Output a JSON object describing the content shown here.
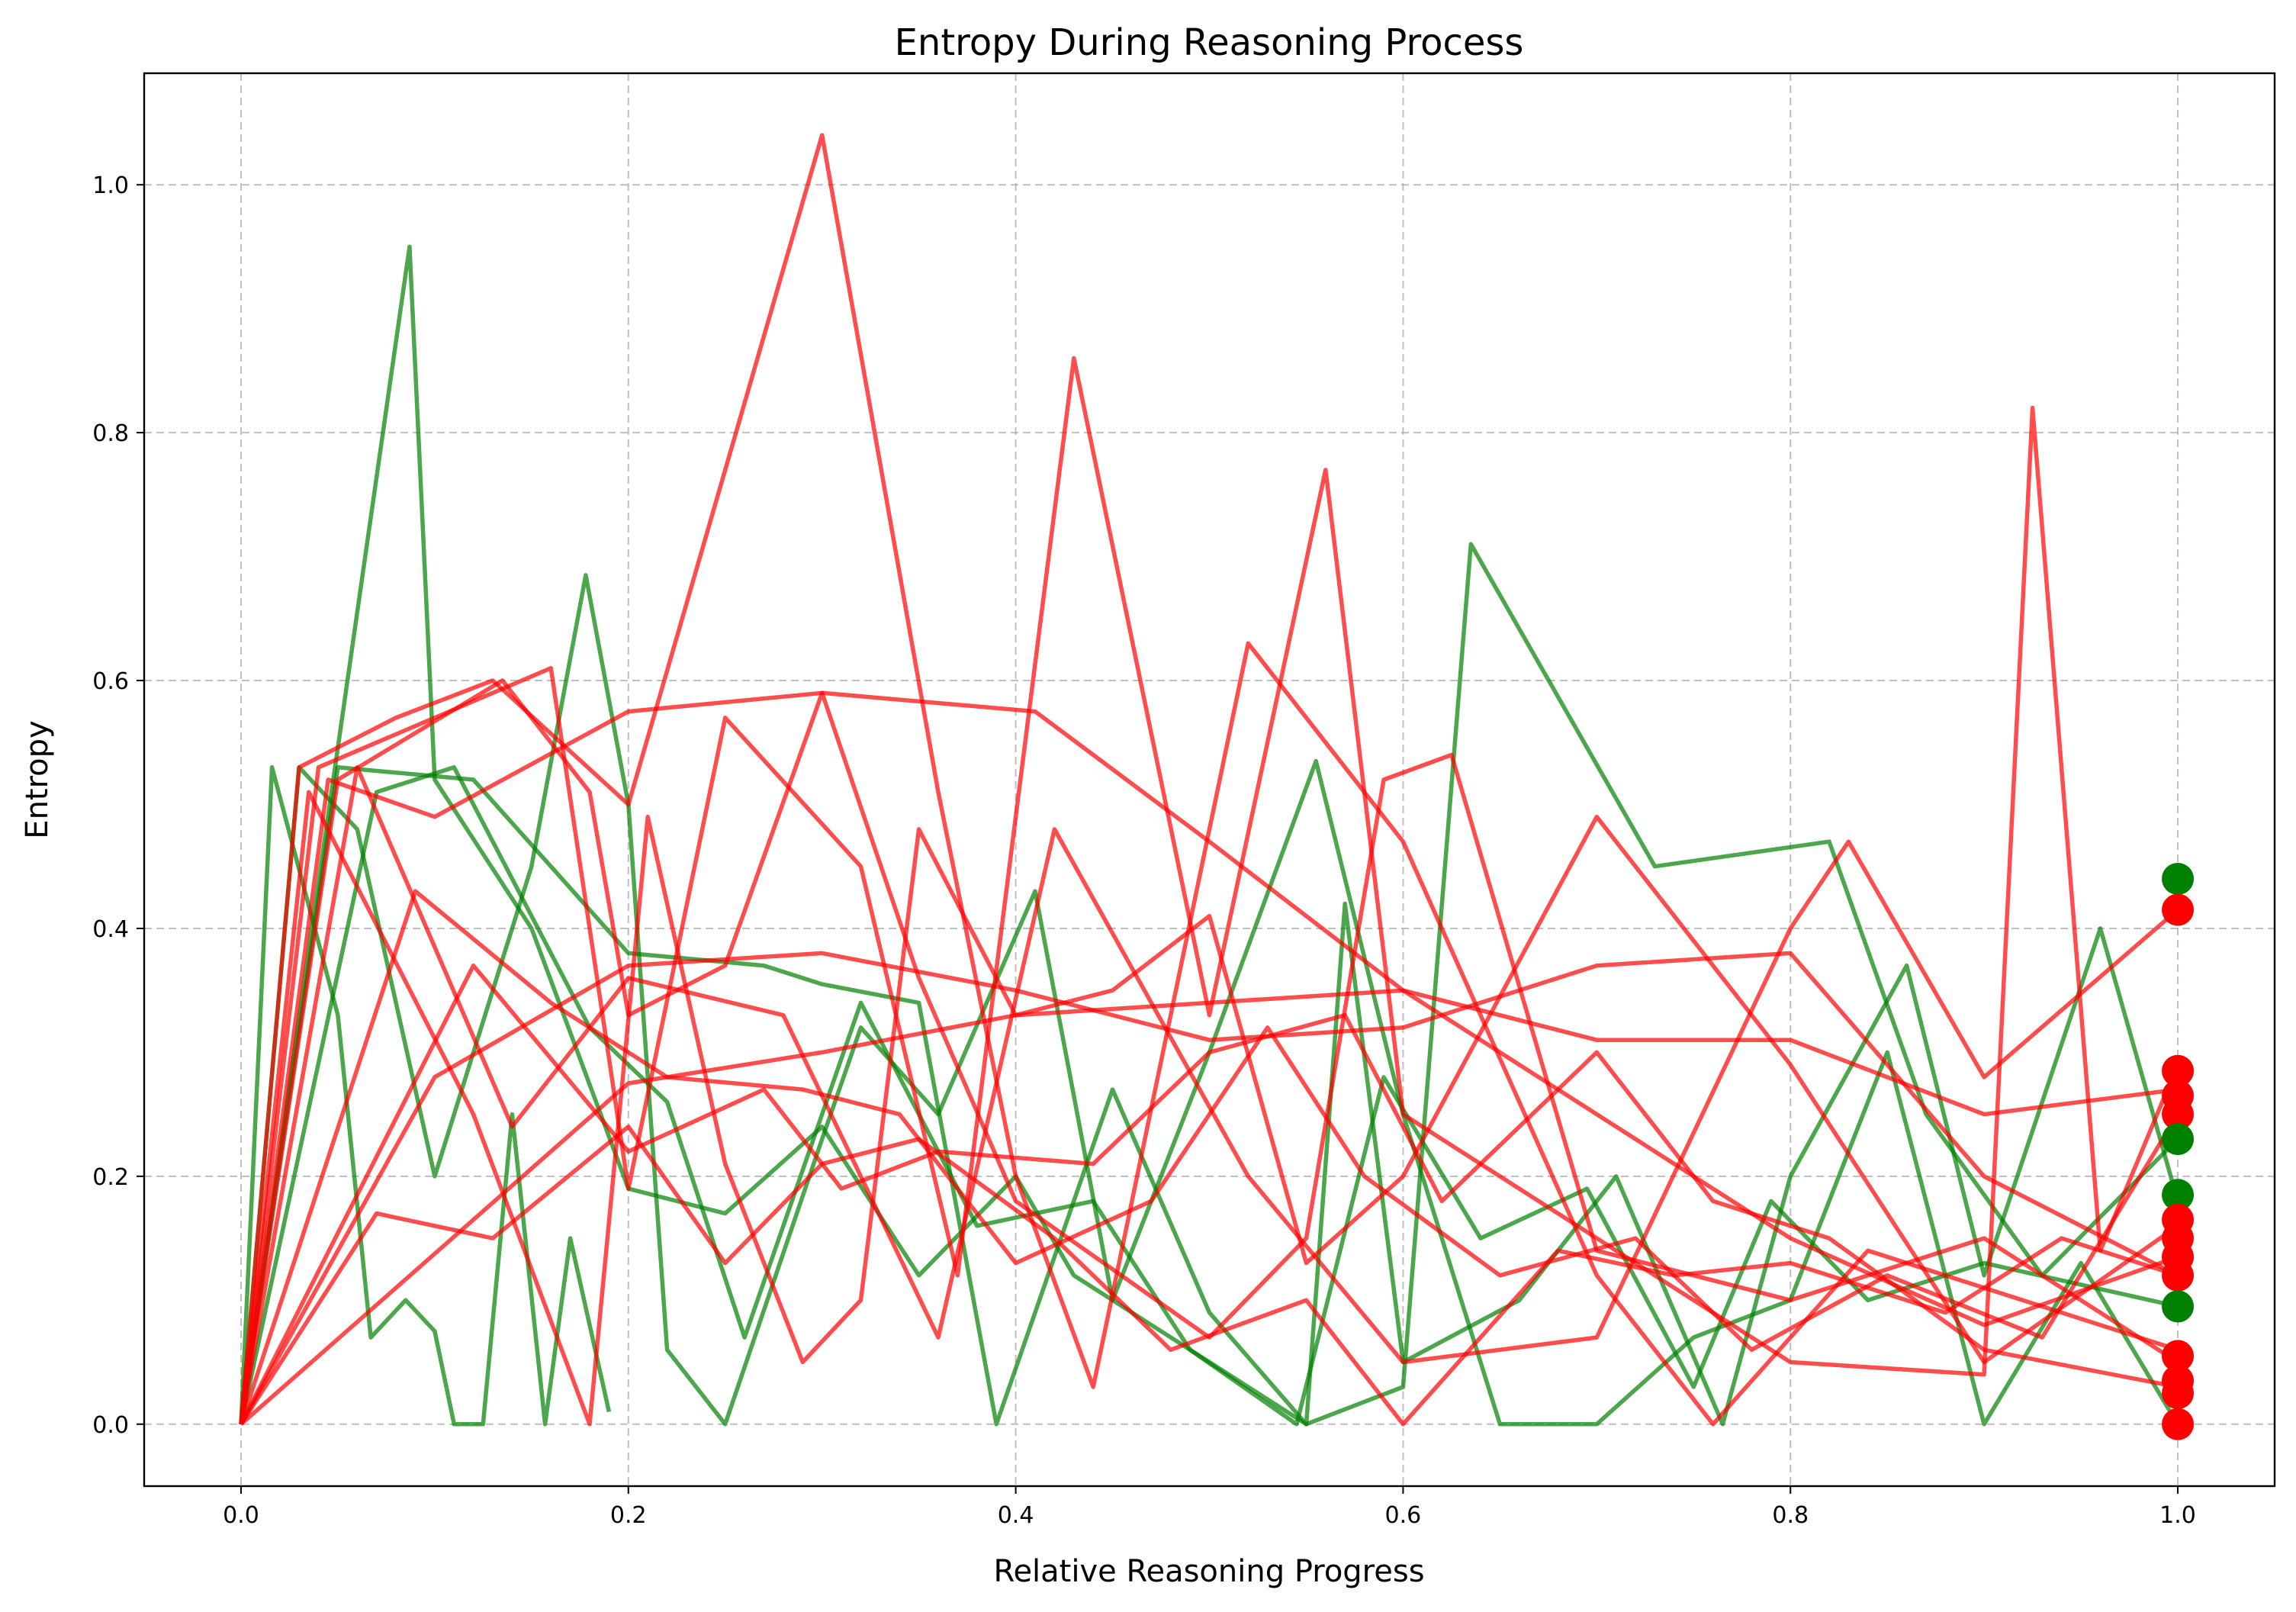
{
  "chart_data": {
    "type": "line",
    "title": "Entropy During Reasoning Process",
    "xlabel": "Relative Reasoning Progress",
    "ylabel": "Entropy",
    "xlim": [
      -0.05,
      1.05
    ],
    "ylim": [
      -0.05,
      1.09
    ],
    "x_ticks": [
      0.0,
      0.2,
      0.4,
      0.6,
      0.8,
      1.0
    ],
    "x_tick_labels": [
      "0.0",
      "0.2",
      "0.4",
      "0.6",
      "0.8",
      "1.0"
    ],
    "y_ticks": [
      0.0,
      0.2,
      0.4,
      0.6,
      0.8,
      1.0
    ],
    "y_tick_labels": [
      "0.0",
      "0.2",
      "0.4",
      "0.6",
      "0.8",
      "1.0"
    ],
    "grid": true,
    "colors": {
      "correct": "#008000",
      "incorrect": "#ff0000"
    },
    "series": [
      {
        "color": "#008000",
        "x": [
          0,
          0.016,
          0.05,
          0.067,
          0.085,
          0.1,
          0.11,
          0.125,
          0.14,
          0.157,
          0.17,
          0.19
        ],
        "y": [
          0,
          0.53,
          0.33,
          0.07,
          0.1,
          0.075,
          0.0,
          0.0,
          0.25,
          0.0,
          0.15,
          0.01
        ]
      },
      {
        "color": "#008000",
        "x": [
          0,
          0.087,
          0.1,
          0.15,
          0.2,
          0.25,
          0.3,
          0.35,
          0.4,
          0.43,
          0.5,
          0.55,
          0.6,
          0.635,
          0.73,
          0.82,
          0.87,
          0.93,
          1.0
        ],
        "y": [
          0,
          0.95,
          0.52,
          0.4,
          0.19,
          0.17,
          0.24,
          0.12,
          0.2,
          0.12,
          0.05,
          0.0,
          0.03,
          0.71,
          0.45,
          0.47,
          0.25,
          0.12,
          0.23
        ]
      },
      {
        "color": "#008000",
        "x": [
          0,
          0.03,
          0.06,
          0.1,
          0.15,
          0.178,
          0.2,
          0.22,
          0.25,
          0.3,
          0.32,
          0.36,
          0.41,
          0.45,
          0.5,
          0.555,
          0.6,
          0.65,
          0.7,
          0.75,
          0.8,
          0.85,
          0.9,
          0.95,
          1.0
        ],
        "y": [
          0,
          0.53,
          0.48,
          0.2,
          0.45,
          0.685,
          0.5,
          0.06,
          0.0,
          0.23,
          0.32,
          0.25,
          0.43,
          0.1,
          0.3,
          0.535,
          0.25,
          0.0,
          0.0,
          0.07,
          0.1,
          0.3,
          0.0,
          0.13,
          0.0
        ]
      },
      {
        "color": "#008000",
        "x": [
          0,
          0.05,
          0.12,
          0.2,
          0.27,
          0.3,
          0.35,
          0.39,
          0.45,
          0.5,
          0.55,
          0.57,
          0.6,
          0.66,
          0.71,
          0.765,
          0.8,
          0.86,
          0.9,
          0.96,
          1.0
        ],
        "y": [
          0,
          0.53,
          0.52,
          0.38,
          0.37,
          0.355,
          0.34,
          0.0,
          0.27,
          0.09,
          0.0,
          0.42,
          0.05,
          0.1,
          0.2,
          0.0,
          0.2,
          0.37,
          0.12,
          0.4,
          0.18
        ]
      },
      {
        "color": "#008000",
        "x": [
          0,
          0.07,
          0.11,
          0.18,
          0.22,
          0.26,
          0.32,
          0.38,
          0.44,
          0.49,
          0.545,
          0.59,
          0.64,
          0.695,
          0.75,
          0.79,
          0.84,
          0.9,
          1.0
        ],
        "y": [
          0,
          0.51,
          0.53,
          0.32,
          0.26,
          0.07,
          0.34,
          0.16,
          0.18,
          0.06,
          0.0,
          0.28,
          0.15,
          0.19,
          0.03,
          0.18,
          0.1,
          0.13,
          0.095
        ]
      },
      {
        "color": "#ff0000",
        "x": [
          0,
          0.03,
          0.08,
          0.13,
          0.2,
          0.3,
          0.36,
          0.4,
          0.44,
          0.52,
          0.6,
          0.7,
          0.76,
          0.84,
          1.0
        ],
        "y": [
          0,
          0.53,
          0.57,
          0.6,
          0.5,
          1.04,
          0.51,
          0.2,
          0.03,
          0.63,
          0.47,
          0.12,
          0.0,
          0.14,
          0.06
        ]
      },
      {
        "color": "#ff0000",
        "x": [
          0,
          0.04,
          0.16,
          0.2,
          0.25,
          0.32,
          0.37,
          0.43,
          0.5,
          0.56,
          0.6,
          0.65,
          0.7,
          0.8,
          0.9,
          0.925,
          0.96,
          1.0
        ],
        "y": [
          0,
          0.53,
          0.61,
          0.19,
          0.57,
          0.45,
          0.12,
          0.86,
          0.33,
          0.77,
          0.25,
          0.2,
          0.15,
          0.05,
          0.04,
          0.82,
          0.14,
          0.29
        ]
      },
      {
        "color": "#ff0000",
        "x": [
          0,
          0.045,
          0.1,
          0.2,
          0.3,
          0.41,
          0.5,
          0.6,
          0.7,
          0.8,
          0.9,
          1.0
        ],
        "y": [
          0,
          0.52,
          0.49,
          0.575,
          0.59,
          0.575,
          0.47,
          0.35,
          0.25,
          0.15,
          0.08,
          0.135
        ]
      },
      {
        "color": "#ff0000",
        "x": [
          0,
          0.05,
          0.135,
          0.18,
          0.2,
          0.25,
          0.3,
          0.35,
          0.4,
          0.5,
          0.55,
          0.59,
          0.625,
          0.7,
          0.8,
          0.9,
          1.0
        ],
        "y": [
          0,
          0.52,
          0.6,
          0.51,
          0.33,
          0.37,
          0.59,
          0.36,
          0.18,
          0.07,
          0.15,
          0.52,
          0.54,
          0.14,
          0.1,
          0.15,
          0.05
        ]
      },
      {
        "color": "#ff0000",
        "x": [
          0,
          0.035,
          0.12,
          0.18,
          0.21,
          0.25,
          0.29,
          0.32,
          0.35,
          0.4,
          0.45,
          0.5,
          0.55,
          0.6,
          0.7,
          0.8,
          0.9,
          1.0
        ],
        "y": [
          0,
          0.51,
          0.25,
          0.0,
          0.49,
          0.21,
          0.05,
          0.1,
          0.48,
          0.33,
          0.35,
          0.41,
          0.13,
          0.2,
          0.49,
          0.29,
          0.05,
          0.16
        ]
      },
      {
        "color": "#ff0000",
        "x": [
          0,
          0.06,
          0.14,
          0.2,
          0.28,
          0.36,
          0.42,
          0.52,
          0.6,
          0.7,
          0.8,
          0.83,
          0.9,
          1.0
        ],
        "y": [
          0,
          0.53,
          0.24,
          0.36,
          0.33,
          0.07,
          0.48,
          0.2,
          0.05,
          0.07,
          0.4,
          0.47,
          0.28,
          0.415
        ]
      },
      {
        "color": "#ff0000",
        "x": [
          0,
          0.1,
          0.2,
          0.3,
          0.4,
          0.5,
          0.6,
          0.7,
          0.8,
          0.9,
          1.0
        ],
        "y": [
          0,
          0.28,
          0.37,
          0.38,
          0.35,
          0.31,
          0.32,
          0.37,
          0.38,
          0.2,
          0.12
        ]
      },
      {
        "color": "#ff0000",
        "x": [
          0,
          0.2,
          0.3,
          0.4,
          0.5,
          0.6,
          0.7,
          0.8,
          0.9,
          1.0
        ],
        "y": [
          0,
          0.275,
          0.3,
          0.33,
          0.34,
          0.35,
          0.31,
          0.31,
          0.25,
          0.27
        ]
      },
      {
        "color": "#ff0000",
        "x": [
          0,
          0.12,
          0.2,
          0.27,
          0.31,
          0.36,
          0.44,
          0.5,
          0.57,
          0.62,
          0.7,
          0.76,
          0.82,
          0.9,
          1.0
        ],
        "y": [
          0,
          0.37,
          0.22,
          0.27,
          0.19,
          0.22,
          0.21,
          0.3,
          0.33,
          0.18,
          0.3,
          0.18,
          0.15,
          0.06,
          0.03
        ]
      },
      {
        "color": "#ff0000",
        "x": [
          0,
          0.09,
          0.16,
          0.22,
          0.29,
          0.34,
          0.4,
          0.47,
          0.53,
          0.58,
          0.65,
          0.72,
          0.78,
          0.85,
          0.93,
          1.0
        ],
        "y": [
          0,
          0.43,
          0.34,
          0.28,
          0.27,
          0.25,
          0.13,
          0.18,
          0.32,
          0.2,
          0.12,
          0.15,
          0.06,
          0.12,
          0.07,
          0.25
        ]
      },
      {
        "color": "#ff0000",
        "x": [
          0,
          0.07,
          0.13,
          0.2,
          0.25,
          0.3,
          0.35,
          0.42,
          0.48,
          0.55,
          0.6,
          0.68,
          0.74,
          0.8,
          0.88,
          0.94,
          1.0
        ],
        "y": [
          0,
          0.17,
          0.15,
          0.24,
          0.13,
          0.21,
          0.23,
          0.15,
          0.06,
          0.1,
          0.0,
          0.14,
          0.12,
          0.13,
          0.09,
          0.15,
          0.12
        ]
      }
    ],
    "end_markers": [
      {
        "color": "#008000",
        "y": 0.44
      },
      {
        "color": "#ff0000",
        "y": 0.415
      },
      {
        "color": "#ff0000",
        "y": 0.285
      },
      {
        "color": "#ff0000",
        "y": 0.265
      },
      {
        "color": "#ff0000",
        "y": 0.25
      },
      {
        "color": "#008000",
        "y": 0.23
      },
      {
        "color": "#008000",
        "y": 0.185
      },
      {
        "color": "#ff0000",
        "y": 0.165
      },
      {
        "color": "#ff0000",
        "y": 0.15
      },
      {
        "color": "#ff0000",
        "y": 0.135
      },
      {
        "color": "#ff0000",
        "y": 0.12
      },
      {
        "color": "#008000",
        "y": 0.095
      },
      {
        "color": "#ff0000",
        "y": 0.055
      },
      {
        "color": "#ff0000",
        "y": 0.035
      },
      {
        "color": "#ff0000",
        "y": 0.025
      },
      {
        "color": "#ff0000",
        "y": 0.0
      }
    ]
  }
}
